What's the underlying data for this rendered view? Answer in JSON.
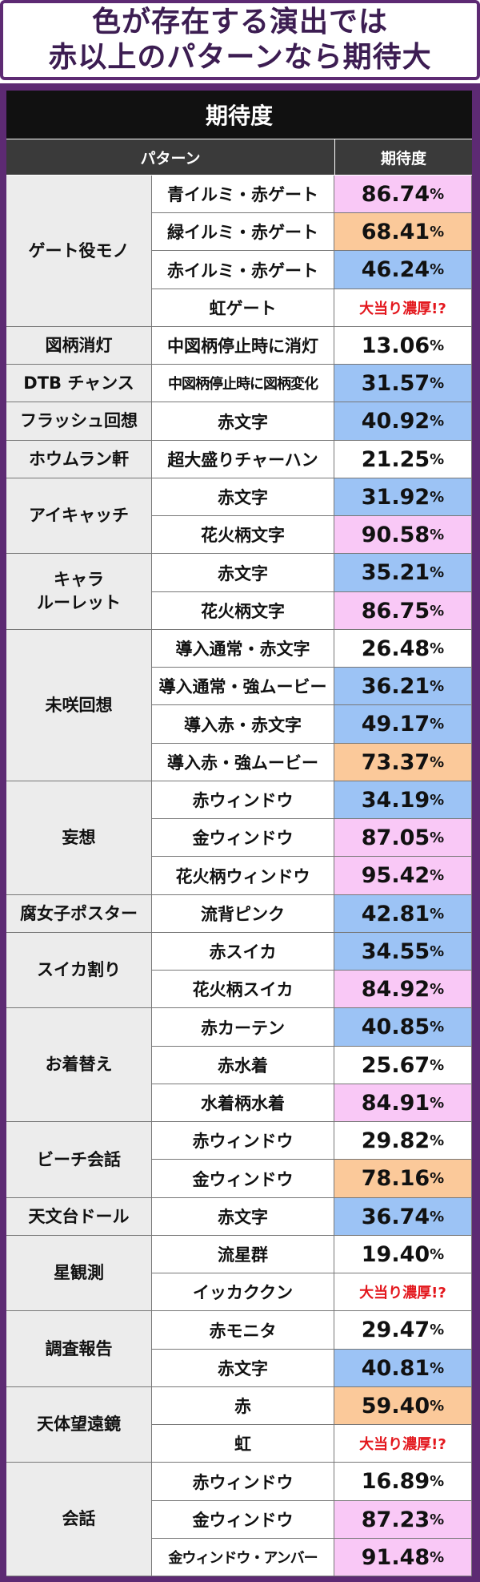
{
  "header": {
    "line1": "色が存在する演出では",
    "line2": "赤以上のパターンなら期待大"
  },
  "table": {
    "title": "期待度",
    "col_pattern": "パターン",
    "col_expectation": "期待度"
  },
  "colors": {
    "frame": "#5d2a73",
    "pink": "#f9c8f6",
    "orange": "#fbc99a",
    "blue": "#9cc3f5",
    "special_text": "#e3171d"
  },
  "groups": [
    {
      "name": "ゲート役モノ",
      "rows": [
        {
          "pattern": "青イルミ・赤ゲート",
          "value": "86.74",
          "color": "pink"
        },
        {
          "pattern": "緑イルミ・赤ゲート",
          "value": "68.41",
          "color": "orange"
        },
        {
          "pattern": "赤イルミ・赤ゲート",
          "value": "46.24",
          "color": "blue"
        },
        {
          "pattern": "虹ゲート",
          "value": "大当り濃厚!?",
          "color": "white",
          "special": true
        }
      ]
    },
    {
      "name": "図柄消灯",
      "rows": [
        {
          "pattern": "中図柄停止時に消灯",
          "value": "13.06",
          "color": "white"
        }
      ]
    },
    {
      "name": "DTB チャンス",
      "rows": [
        {
          "pattern": "中図柄停止時に図柄変化",
          "value": "31.57",
          "color": "blue",
          "narrow": true
        }
      ]
    },
    {
      "name": "フラッシュ回想",
      "rows": [
        {
          "pattern": "赤文字",
          "value": "40.92",
          "color": "blue"
        }
      ]
    },
    {
      "name": "ホウムラン軒",
      "rows": [
        {
          "pattern": "超大盛りチャーハン",
          "value": "21.25",
          "color": "white"
        }
      ]
    },
    {
      "name": "アイキャッチ",
      "rows": [
        {
          "pattern": "赤文字",
          "value": "31.92",
          "color": "blue"
        },
        {
          "pattern": "花火柄文字",
          "value": "90.58",
          "color": "pink"
        }
      ]
    },
    {
      "name": "キャラ\nルーレット",
      "rows": [
        {
          "pattern": "赤文字",
          "value": "35.21",
          "color": "blue"
        },
        {
          "pattern": "花火柄文字",
          "value": "86.75",
          "color": "pink"
        }
      ]
    },
    {
      "name": "未咲回想",
      "rows": [
        {
          "pattern": "導入通常・赤文字",
          "value": "26.48",
          "color": "white"
        },
        {
          "pattern": "導入通常・強ムービー",
          "value": "36.21",
          "color": "blue"
        },
        {
          "pattern": "導入赤・赤文字",
          "value": "49.17",
          "color": "blue"
        },
        {
          "pattern": "導入赤・強ムービー",
          "value": "73.37",
          "color": "orange"
        }
      ]
    },
    {
      "name": "妄想",
      "rows": [
        {
          "pattern": "赤ウィンドウ",
          "value": "34.19",
          "color": "blue"
        },
        {
          "pattern": "金ウィンドウ",
          "value": "87.05",
          "color": "pink"
        },
        {
          "pattern": "花火柄ウィンドウ",
          "value": "95.42",
          "color": "pink"
        }
      ]
    },
    {
      "name": "腐女子ポスター",
      "rows": [
        {
          "pattern": "流背ピンク",
          "value": "42.81",
          "color": "blue"
        }
      ]
    },
    {
      "name": "スイカ割り",
      "rows": [
        {
          "pattern": "赤スイカ",
          "value": "34.55",
          "color": "blue"
        },
        {
          "pattern": "花火柄スイカ",
          "value": "84.92",
          "color": "pink"
        }
      ]
    },
    {
      "name": "お着替え",
      "rows": [
        {
          "pattern": "赤カーテン",
          "value": "40.85",
          "color": "blue"
        },
        {
          "pattern": "赤水着",
          "value": "25.67",
          "color": "white"
        },
        {
          "pattern": "水着柄水着",
          "value": "84.91",
          "color": "pink"
        }
      ]
    },
    {
      "name": "ビーチ会話",
      "rows": [
        {
          "pattern": "赤ウィンドウ",
          "value": "29.82",
          "color": "white"
        },
        {
          "pattern": "金ウィンドウ",
          "value": "78.16",
          "color": "orange"
        }
      ]
    },
    {
      "name": "天文台ドール",
      "rows": [
        {
          "pattern": "赤文字",
          "value": "36.74",
          "color": "blue"
        }
      ]
    },
    {
      "name": "星観測",
      "rows": [
        {
          "pattern": "流星群",
          "value": "19.40",
          "color": "white"
        },
        {
          "pattern": "イッカククン",
          "value": "大当り濃厚!?",
          "color": "white",
          "special": true
        }
      ]
    },
    {
      "name": "調査報告",
      "rows": [
        {
          "pattern": "赤モニタ",
          "value": "29.47",
          "color": "white"
        },
        {
          "pattern": "赤文字",
          "value": "40.81",
          "color": "blue"
        }
      ]
    },
    {
      "name": "天体望遠鏡",
      "rows": [
        {
          "pattern": "赤",
          "value": "59.40",
          "color": "orange"
        },
        {
          "pattern": "虹",
          "value": "大当り濃厚!?",
          "color": "white",
          "special": true
        }
      ]
    },
    {
      "name": "会話",
      "rows": [
        {
          "pattern": "赤ウィンドウ",
          "value": "16.89",
          "color": "white"
        },
        {
          "pattern": "金ウィンドウ",
          "value": "87.23",
          "color": "pink"
        },
        {
          "pattern": "金ウィンドウ・アンバー",
          "value": "91.48",
          "color": "pink",
          "narrow": true
        }
      ]
    }
  ],
  "percent_sign": "%"
}
